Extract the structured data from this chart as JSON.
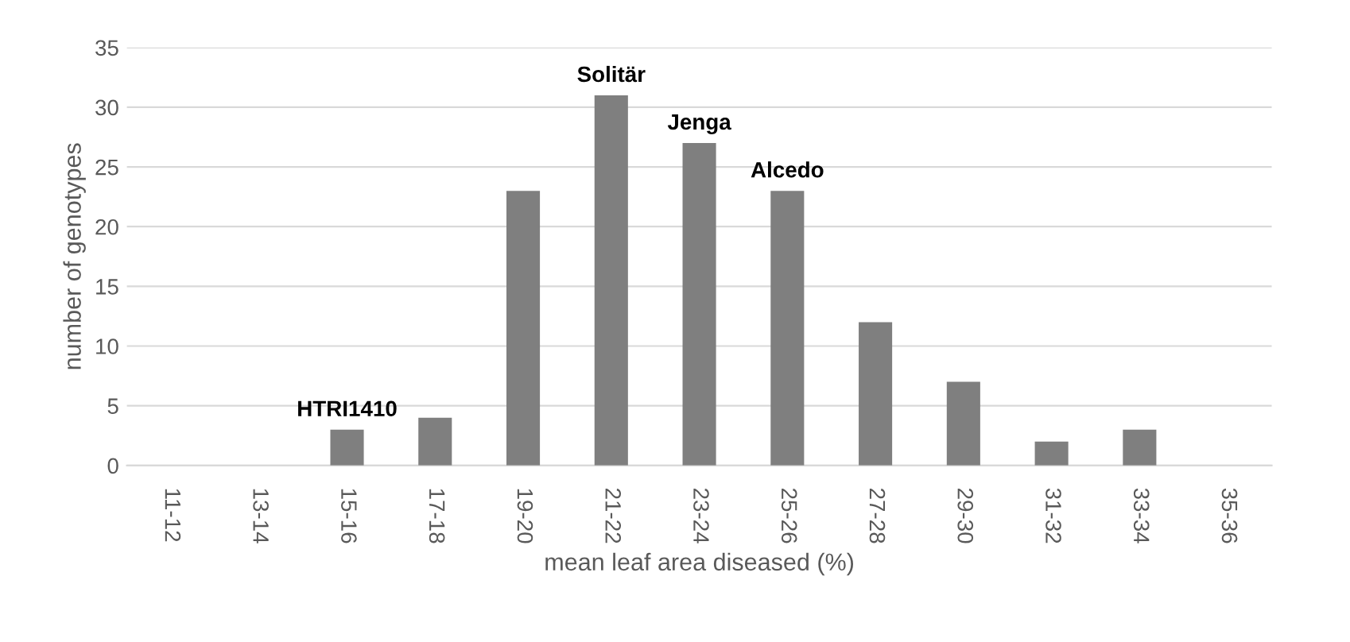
{
  "chart_data": {
    "type": "bar",
    "xlabel": "mean leaf area diseased (%)",
    "ylabel": "number of genotypes",
    "categories": [
      "11-12",
      "13-14",
      "15-16",
      "17-18",
      "19-20",
      "21-22",
      "23-24",
      "25-26",
      "27-28",
      "29-30",
      "31-32",
      "33-34",
      "35-36"
    ],
    "values": [
      0,
      0,
      3,
      4,
      23,
      31,
      27,
      23,
      12,
      7,
      2,
      3,
      0
    ],
    "color": "#7f7f7f",
    "ylim": [
      0,
      35
    ],
    "yticks": [
      0,
      5,
      10,
      15,
      20,
      25,
      30,
      35
    ],
    "grid": "y",
    "legend": false,
    "annotations": [
      {
        "text": "HTRI1410",
        "x": "15-16",
        "y": 3
      },
      {
        "text": "Solitär",
        "x": "21-22",
        "y": 31
      },
      {
        "text": "Jenga",
        "x": "23-24",
        "y": 27
      },
      {
        "text": "Alcedo",
        "x": "25-26",
        "y": 23
      }
    ]
  }
}
